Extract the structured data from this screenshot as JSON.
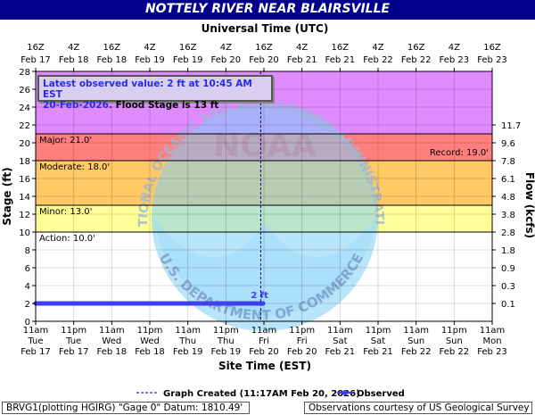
{
  "title": "NOTTELY RIVER NEAR BLAIRSVILLE",
  "top_axis_title": "Universal Time (UTC)",
  "bottom_axis_title": "Site Time (EST)",
  "left_axis_title": "Stage (ft)",
  "right_axis_title": "Flow (kcfs)",
  "top_ticks": [
    {
      "hour": "16Z",
      "date": "Feb 17"
    },
    {
      "hour": "4Z",
      "date": "Feb 18"
    },
    {
      "hour": "16Z",
      "date": "Feb 18"
    },
    {
      "hour": "4Z",
      "date": "Feb 19"
    },
    {
      "hour": "16Z",
      "date": "Feb 19"
    },
    {
      "hour": "4Z",
      "date": "Feb 20"
    },
    {
      "hour": "16Z",
      "date": "Feb 20"
    },
    {
      "hour": "4Z",
      "date": "Feb 21"
    },
    {
      "hour": "16Z",
      "date": "Feb 21"
    },
    {
      "hour": "4Z",
      "date": "Feb 22"
    },
    {
      "hour": "16Z",
      "date": "Feb 22"
    },
    {
      "hour": "4Z",
      "date": "Feb 23"
    },
    {
      "hour": "16Z",
      "date": "Feb 23"
    }
  ],
  "bottom_ticks": [
    {
      "time": "11am",
      "day": "Tue",
      "date": "Feb 17"
    },
    {
      "time": "11pm",
      "day": "Tue",
      "date": "Feb 17"
    },
    {
      "time": "11am",
      "day": "Wed",
      "date": "Feb 18"
    },
    {
      "time": "11pm",
      "day": "Wed",
      "date": "Feb 18"
    },
    {
      "time": "11am",
      "day": "Thu",
      "date": "Feb 19"
    },
    {
      "time": "11pm",
      "day": "Thu",
      "date": "Feb 19"
    },
    {
      "time": "11am",
      "day": "Fri",
      "date": "Feb 20"
    },
    {
      "time": "11pm",
      "day": "Fri",
      "date": "Feb 20"
    },
    {
      "time": "11am",
      "day": "Sat",
      "date": "Feb 21"
    },
    {
      "time": "11pm",
      "day": "Sat",
      "date": "Feb 21"
    },
    {
      "time": "11am",
      "day": "Sun",
      "date": "Feb 22"
    },
    {
      "time": "11pm",
      "day": "Sun",
      "date": "Feb 22"
    },
    {
      "time": "11am",
      "day": "Mon",
      "date": "Feb 23"
    }
  ],
  "notice": {
    "line1": "Latest observed value: 2 ft at 10:45 AM EST",
    "line2_date": "20-Feb-2026.",
    "line2_rest": " Flood Stage is 13 ft"
  },
  "watermark": {
    "top_text": "NATIONAL OCEANIC AND ATMOSPHERIC ADMINISTRATION",
    "center_text": "NOAA",
    "bottom_text": "U.S. DEPARTMENT OF COMMERCE"
  },
  "legend": {
    "created": "Graph Created (11:17AM Feb 20, 2026)",
    "observed": "Observed"
  },
  "footer_left": "BRVG1(plotting HGIRG) \"Gage 0\" Datum: 1810.49'",
  "footer_right": "Observations courtesy of US Geological Survey",
  "chart_data": {
    "type": "line",
    "x_unit": "hours after Tue Feb 17 11am EST",
    "xlim": [
      0,
      144
    ],
    "ylim": [
      0,
      28
    ],
    "y_ticks": [
      0,
      2,
      4,
      6,
      8,
      10,
      12,
      14,
      16,
      18,
      20,
      22,
      24,
      26,
      28
    ],
    "flow_ticks": [
      {
        "stage": 2,
        "label": "0.1"
      },
      {
        "stage": 4,
        "label": "0.3"
      },
      {
        "stage": 6,
        "label": "0.9"
      },
      {
        "stage": 8,
        "label": "1.8"
      },
      {
        "stage": 10,
        "label": "2.8"
      },
      {
        "stage": 12,
        "label": "3.8"
      },
      {
        "stage": 14,
        "label": "4.8"
      },
      {
        "stage": 16,
        "label": "6.1"
      },
      {
        "stage": 18,
        "label": "7.8"
      },
      {
        "stage": 20,
        "label": "9.6"
      },
      {
        "stage": 22,
        "label": "11.7"
      }
    ],
    "bands": [
      {
        "from": 0,
        "to": 10,
        "color": "#ffffff"
      },
      {
        "from": 10,
        "to": 13,
        "color": "#ffff99"
      },
      {
        "from": 13,
        "to": 18,
        "color": "#ffc966"
      },
      {
        "from": 18,
        "to": 21,
        "color": "#ff7f7f"
      },
      {
        "from": 21,
        "to": 28,
        "color": "#e08aff"
      }
    ],
    "thresholds": [
      {
        "name": "Action",
        "label": "Action: 10.0'",
        "value": 10.0
      },
      {
        "name": "Minor",
        "label": "Minor: 13.0'",
        "value": 13.0
      },
      {
        "name": "Moderate",
        "label": "Moderate: 18.0'",
        "value": 18.0
      },
      {
        "name": "Major",
        "label": "Major: 21.0'",
        "value": 21.0
      }
    ],
    "record": {
      "label": "Record: 19.0'",
      "value": 19.0
    },
    "graph_created_x": 71,
    "series": [
      {
        "name": "Observed",
        "color": "#3f3ff0",
        "x": [
          0,
          12,
          24,
          36,
          48,
          60,
          71.75
        ],
        "y": [
          2,
          2,
          2,
          2,
          2,
          2,
          2
        ]
      }
    ],
    "last_value_label": "2 ft"
  }
}
